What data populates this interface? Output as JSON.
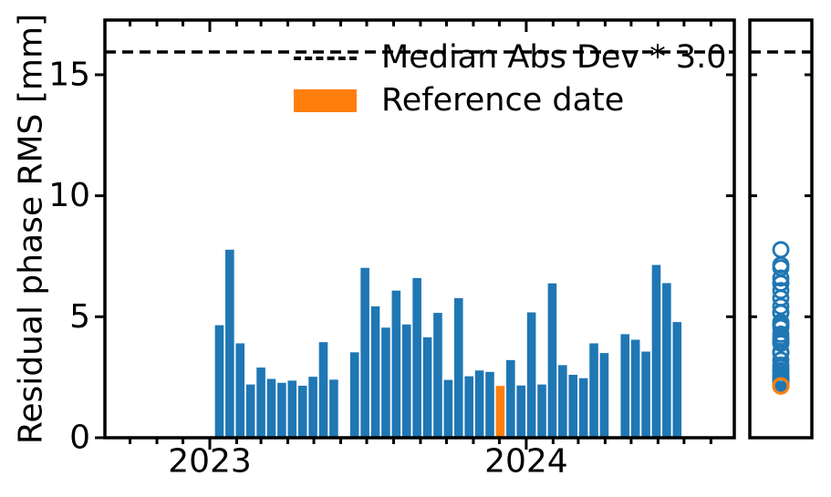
{
  "figure": {
    "background": "#ffffff"
  },
  "colors": {
    "bar_blue": "#1f77b4",
    "reference_orange": "#ff7f0e",
    "threshold_line": "#000000",
    "axis": "#000000"
  },
  "legend": {
    "items": [
      {
        "label": "Median Abs Dev * 3.0",
        "marker": "dashed-line"
      },
      {
        "label": "Reference date",
        "marker": "orange-swatch"
      }
    ]
  },
  "chart_data": [
    {
      "type": "bar",
      "title": "",
      "xlabel": "",
      "ylabel": "Residual phase RMS [mm]",
      "ylim": [
        0,
        17.26
      ],
      "y_ticks": [
        0,
        5,
        10,
        15
      ],
      "y_tick_labels": [
        "0",
        "5",
        "10",
        "15"
      ],
      "x_domain": [
        "2022-09-02",
        "2024-08-28"
      ],
      "x_tick_dates": [
        "2023-01-01",
        "2024-01-01"
      ],
      "x_tick_labels": [
        "2023",
        "2024"
      ],
      "minor_ticks": "monthly",
      "grid": false,
      "threshold": {
        "label": "Median Abs Dev * 3.0",
        "value": 15.94,
        "style": "dashed"
      },
      "bars": {
        "dates": [
          "2023-01-12",
          "2023-01-24",
          "2023-02-05",
          "2023-02-17",
          "2023-03-01",
          "2023-03-13",
          "2023-03-25",
          "2023-04-06",
          "2023-04-18",
          "2023-04-30",
          "2023-05-12",
          "2023-05-24",
          "2023-06-17",
          "2023-06-29",
          "2023-07-11",
          "2023-07-23",
          "2023-08-04",
          "2023-08-16",
          "2023-08-28",
          "2023-09-09",
          "2023-09-21",
          "2023-10-03",
          "2023-10-15",
          "2023-10-27",
          "2023-11-08",
          "2023-11-20",
          "2023-12-02",
          "2023-12-14",
          "2023-12-26",
          "2024-01-07",
          "2024-01-19",
          "2024-01-31",
          "2024-02-12",
          "2024-02-24",
          "2024-03-07",
          "2024-03-19",
          "2024-03-31",
          "2024-04-24",
          "2024-05-06",
          "2024-05-18",
          "2024-05-30",
          "2024-06-11",
          "2024-06-23"
        ],
        "values": [
          4.65,
          7.77,
          3.9,
          2.2,
          2.9,
          2.43,
          2.27,
          2.36,
          2.15,
          2.52,
          3.95,
          2.4,
          3.53,
          7.02,
          5.43,
          4.55,
          6.08,
          4.68,
          6.6,
          4.15,
          5.16,
          2.39,
          5.77,
          2.54,
          2.78,
          2.72,
          2.14,
          3.21,
          2.16,
          5.18,
          2.2,
          6.38,
          3.0,
          2.6,
          2.46,
          3.9,
          3.5,
          4.28,
          4.05,
          3.56,
          7.14,
          6.39,
          4.78
        ],
        "reference_index": 26,
        "reference_date": "2023-12-02",
        "reference_value": 2.14
      }
    },
    {
      "type": "scatter",
      "title": "",
      "description": "side strip panel: distribution of the same RMS values as open circles at a single x position",
      "marker": "open-circle",
      "values": [
        4.65,
        7.77,
        3.9,
        2.2,
        2.9,
        2.43,
        2.27,
        2.36,
        2.15,
        2.52,
        3.95,
        2.4,
        3.53,
        7.02,
        5.43,
        4.55,
        6.08,
        4.68,
        6.6,
        4.15,
        5.16,
        2.39,
        5.77,
        2.54,
        2.78,
        2.72,
        2.14,
        3.21,
        2.16,
        5.18,
        2.2,
        6.38,
        3.0,
        2.6,
        2.46,
        3.9,
        3.5,
        4.28,
        4.05,
        3.56,
        7.14,
        6.39,
        4.78
      ],
      "reference_value": 2.14,
      "ylim": [
        0,
        17.26
      ],
      "threshold_value": 15.94
    }
  ]
}
